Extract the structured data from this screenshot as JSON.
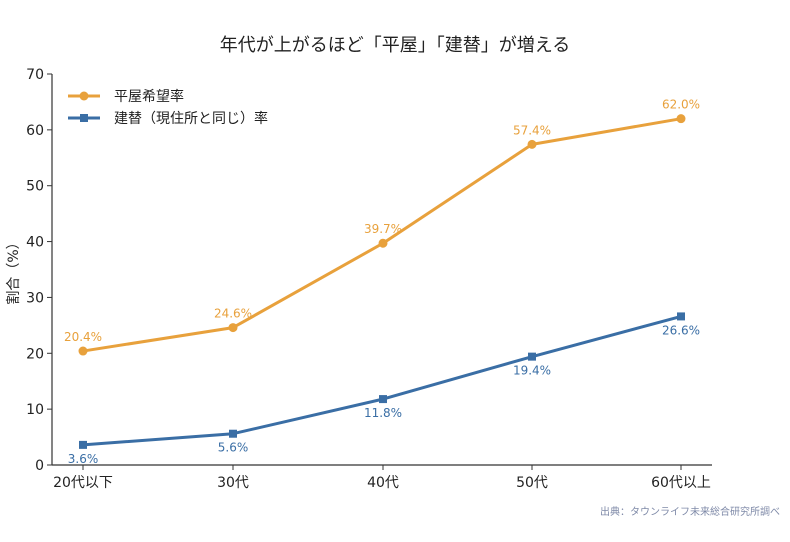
{
  "chart_data": {
    "type": "line",
    "title": "年代が上がるほど「平屋」「建替」が増える",
    "categories": [
      "20代以下",
      "30代",
      "40代",
      "50代",
      "60代以上"
    ],
    "ylabel": "割合（%）",
    "xlabel": "",
    "ylim": [
      0,
      70
    ],
    "yticks": [
      "0",
      "10",
      "20",
      "30",
      "40",
      "50",
      "60",
      "70"
    ],
    "grid": false,
    "legend_position": "top-left",
    "series": [
      {
        "name": "平屋希望率",
        "values": [
          20.4,
          24.6,
          39.7,
          57.4,
          62.0
        ],
        "labels": [
          "20.4%",
          "24.6%",
          "39.7%",
          "57.4%",
          "62.0%"
        ],
        "color": "#e8a13c",
        "marker": "circle",
        "label_position": "above"
      },
      {
        "name": "建替（現住所と同じ）率",
        "values": [
          3.6,
          5.6,
          11.8,
          19.4,
          26.6
        ],
        "labels": [
          "3.6%",
          "5.6%",
          "11.8%",
          "19.4%",
          "26.6%"
        ],
        "color": "#3a6ea5",
        "marker": "square",
        "label_position": "below"
      }
    ],
    "source": "出典：タウンライフ未来総合研究所調べ"
  }
}
